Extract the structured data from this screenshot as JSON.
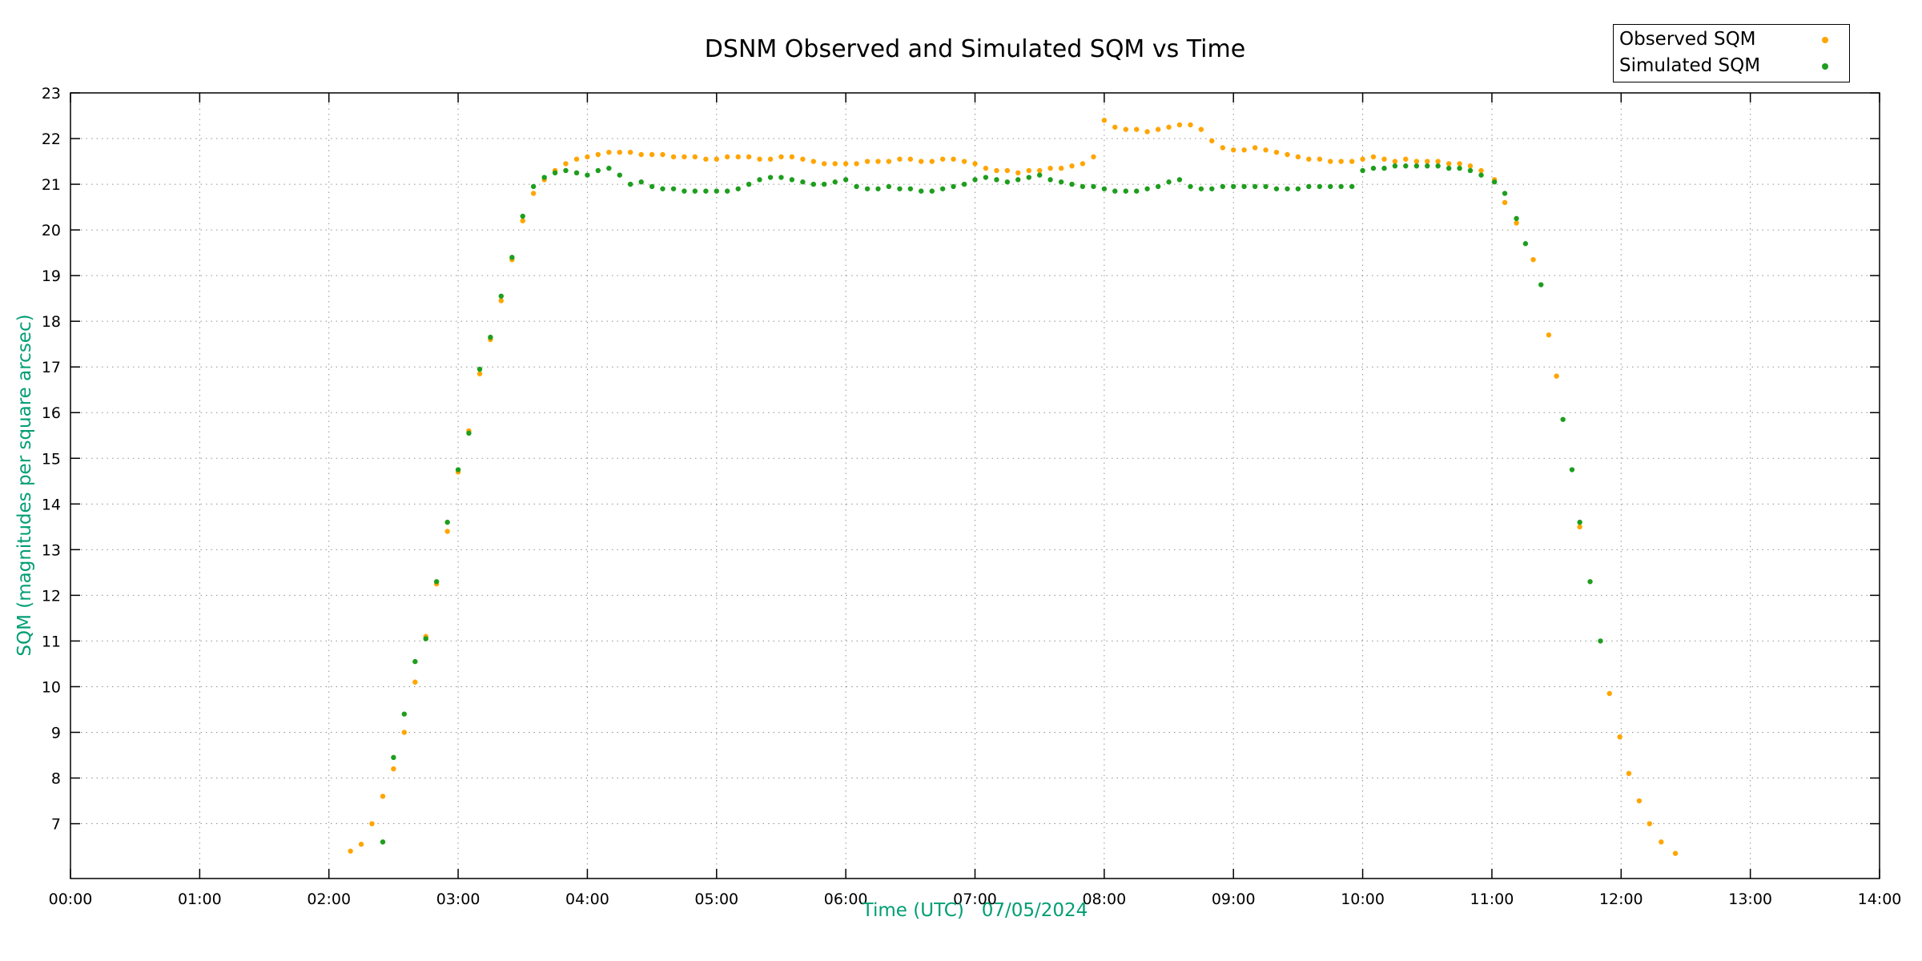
{
  "page": {
    "background": "#ffffff"
  },
  "chart_data": {
    "type": "scatter",
    "title": "DSNM Observed and Simulated SQM vs Time",
    "xlabel": "Time (UTC)   07/05/2024",
    "ylabel": "SQM (magnitudes per square arcsec)",
    "axis_label_color": "#009e73",
    "grid": "dotted",
    "legend_position": "top-right",
    "xlim_hours": [
      0,
      14
    ],
    "ylim": [
      5.8,
      23
    ],
    "x_ticks": [
      "00:00",
      "01:00",
      "02:00",
      "03:00",
      "04:00",
      "05:00",
      "06:00",
      "07:00",
      "08:00",
      "09:00",
      "10:00",
      "11:00",
      "12:00",
      "13:00",
      "14:00"
    ],
    "y_ticks": [
      7,
      8,
      9,
      10,
      11,
      12,
      13,
      14,
      15,
      16,
      17,
      18,
      19,
      20,
      21,
      22,
      23
    ],
    "series": [
      {
        "name": "Observed SQM",
        "color": "#FFA500",
        "marker": "dot",
        "points": [
          [
            2.167,
            6.4
          ],
          [
            2.25,
            6.55
          ],
          [
            2.333,
            7.0
          ],
          [
            2.417,
            7.6
          ],
          [
            2.5,
            8.2
          ],
          [
            2.583,
            9.0
          ],
          [
            2.667,
            10.1
          ],
          [
            2.75,
            11.1
          ],
          [
            2.833,
            12.25
          ],
          [
            2.917,
            13.4
          ],
          [
            3.0,
            14.7
          ],
          [
            3.083,
            15.6
          ],
          [
            3.167,
            16.85
          ],
          [
            3.25,
            17.6
          ],
          [
            3.333,
            18.45
          ],
          [
            3.417,
            19.35
          ],
          [
            3.5,
            20.2
          ],
          [
            3.583,
            20.8
          ],
          [
            3.667,
            21.1
          ],
          [
            3.75,
            21.3
          ],
          [
            3.833,
            21.45
          ],
          [
            3.917,
            21.55
          ],
          [
            4.0,
            21.6
          ],
          [
            4.083,
            21.65
          ],
          [
            4.167,
            21.7
          ],
          [
            4.25,
            21.7
          ],
          [
            4.333,
            21.7
          ],
          [
            4.417,
            21.65
          ],
          [
            4.5,
            21.65
          ],
          [
            4.583,
            21.65
          ],
          [
            4.667,
            21.6
          ],
          [
            4.75,
            21.6
          ],
          [
            4.833,
            21.6
          ],
          [
            4.917,
            21.55
          ],
          [
            5.0,
            21.55
          ],
          [
            5.083,
            21.6
          ],
          [
            5.167,
            21.6
          ],
          [
            5.25,
            21.6
          ],
          [
            5.333,
            21.55
          ],
          [
            5.417,
            21.55
          ],
          [
            5.5,
            21.6
          ],
          [
            5.583,
            21.6
          ],
          [
            5.667,
            21.55
          ],
          [
            5.75,
            21.5
          ],
          [
            5.833,
            21.45
          ],
          [
            5.917,
            21.45
          ],
          [
            6.0,
            21.45
          ],
          [
            6.083,
            21.45
          ],
          [
            6.167,
            21.5
          ],
          [
            6.25,
            21.5
          ],
          [
            6.333,
            21.5
          ],
          [
            6.417,
            21.55
          ],
          [
            6.5,
            21.55
          ],
          [
            6.583,
            21.5
          ],
          [
            6.667,
            21.5
          ],
          [
            6.75,
            21.55
          ],
          [
            6.833,
            21.55
          ],
          [
            6.917,
            21.5
          ],
          [
            7.0,
            21.45
          ],
          [
            7.083,
            21.35
          ],
          [
            7.167,
            21.3
          ],
          [
            7.25,
            21.3
          ],
          [
            7.333,
            21.25
          ],
          [
            7.417,
            21.3
          ],
          [
            7.5,
            21.3
          ],
          [
            7.583,
            21.35
          ],
          [
            7.667,
            21.35
          ],
          [
            7.75,
            21.4
          ],
          [
            7.833,
            21.45
          ],
          [
            7.917,
            21.6
          ],
          [
            8.0,
            22.4
          ],
          [
            8.083,
            22.25
          ],
          [
            8.167,
            22.2
          ],
          [
            8.25,
            22.2
          ],
          [
            8.333,
            22.15
          ],
          [
            8.417,
            22.2
          ],
          [
            8.5,
            22.25
          ],
          [
            8.583,
            22.3
          ],
          [
            8.667,
            22.3
          ],
          [
            8.75,
            22.2
          ],
          [
            8.833,
            21.95
          ],
          [
            8.917,
            21.8
          ],
          [
            9.0,
            21.75
          ],
          [
            9.083,
            21.75
          ],
          [
            9.167,
            21.8
          ],
          [
            9.25,
            21.75
          ],
          [
            9.333,
            21.7
          ],
          [
            9.417,
            21.65
          ],
          [
            9.5,
            21.6
          ],
          [
            9.583,
            21.55
          ],
          [
            9.667,
            21.55
          ],
          [
            9.75,
            21.5
          ],
          [
            9.833,
            21.5
          ],
          [
            9.917,
            21.5
          ],
          [
            10.0,
            21.55
          ],
          [
            10.083,
            21.6
          ],
          [
            10.167,
            21.55
          ],
          [
            10.25,
            21.5
          ],
          [
            10.333,
            21.55
          ],
          [
            10.417,
            21.5
          ],
          [
            10.5,
            21.5
          ],
          [
            10.583,
            21.5
          ],
          [
            10.667,
            21.45
          ],
          [
            10.75,
            21.45
          ],
          [
            10.833,
            21.4
          ],
          [
            10.917,
            21.3
          ],
          [
            11.02,
            21.1
          ],
          [
            11.1,
            20.6
          ],
          [
            11.19,
            20.15
          ],
          [
            11.32,
            19.35
          ],
          [
            11.44,
            17.7
          ],
          [
            11.5,
            16.8
          ],
          [
            11.68,
            13.5
          ],
          [
            11.91,
            9.85
          ],
          [
            11.99,
            8.9
          ],
          [
            12.06,
            8.1
          ],
          [
            12.14,
            7.5
          ],
          [
            12.22,
            7.0
          ],
          [
            12.31,
            6.6
          ],
          [
            12.42,
            6.35
          ]
        ]
      },
      {
        "name": "Simulated SQM",
        "color": "#1E9E1E",
        "marker": "dot",
        "points": [
          [
            2.417,
            6.6
          ],
          [
            2.5,
            8.45
          ],
          [
            2.583,
            9.4
          ],
          [
            2.667,
            10.55
          ],
          [
            2.75,
            11.05
          ],
          [
            2.833,
            12.3
          ],
          [
            2.917,
            13.6
          ],
          [
            3.0,
            14.75
          ],
          [
            3.083,
            15.55
          ],
          [
            3.167,
            16.95
          ],
          [
            3.25,
            17.65
          ],
          [
            3.333,
            18.55
          ],
          [
            3.417,
            19.4
          ],
          [
            3.5,
            20.3
          ],
          [
            3.583,
            20.95
          ],
          [
            3.667,
            21.15
          ],
          [
            3.75,
            21.25
          ],
          [
            3.833,
            21.3
          ],
          [
            3.917,
            21.25
          ],
          [
            4.0,
            21.2
          ],
          [
            4.083,
            21.3
          ],
          [
            4.167,
            21.35
          ],
          [
            4.25,
            21.2
          ],
          [
            4.333,
            21.0
          ],
          [
            4.417,
            21.05
          ],
          [
            4.5,
            20.95
          ],
          [
            4.583,
            20.9
          ],
          [
            4.667,
            20.9
          ],
          [
            4.75,
            20.85
          ],
          [
            4.833,
            20.85
          ],
          [
            4.917,
            20.85
          ],
          [
            5.0,
            20.85
          ],
          [
            5.083,
            20.85
          ],
          [
            5.167,
            20.9
          ],
          [
            5.25,
            21.0
          ],
          [
            5.333,
            21.1
          ],
          [
            5.417,
            21.15
          ],
          [
            5.5,
            21.15
          ],
          [
            5.583,
            21.1
          ],
          [
            5.667,
            21.05
          ],
          [
            5.75,
            21.0
          ],
          [
            5.833,
            21.0
          ],
          [
            5.917,
            21.05
          ],
          [
            6.0,
            21.1
          ],
          [
            6.083,
            20.95
          ],
          [
            6.167,
            20.9
          ],
          [
            6.25,
            20.9
          ],
          [
            6.333,
            20.95
          ],
          [
            6.417,
            20.9
          ],
          [
            6.5,
            20.9
          ],
          [
            6.583,
            20.85
          ],
          [
            6.667,
            20.85
          ],
          [
            6.75,
            20.9
          ],
          [
            6.833,
            20.95
          ],
          [
            6.917,
            21.0
          ],
          [
            7.0,
            21.1
          ],
          [
            7.083,
            21.15
          ],
          [
            7.167,
            21.1
          ],
          [
            7.25,
            21.05
          ],
          [
            7.333,
            21.1
          ],
          [
            7.417,
            21.15
          ],
          [
            7.5,
            21.2
          ],
          [
            7.583,
            21.1
          ],
          [
            7.667,
            21.05
          ],
          [
            7.75,
            21.0
          ],
          [
            7.833,
            20.95
          ],
          [
            7.917,
            20.95
          ],
          [
            8.0,
            20.9
          ],
          [
            8.083,
            20.85
          ],
          [
            8.167,
            20.85
          ],
          [
            8.25,
            20.85
          ],
          [
            8.333,
            20.9
          ],
          [
            8.417,
            20.95
          ],
          [
            8.5,
            21.05
          ],
          [
            8.583,
            21.1
          ],
          [
            8.667,
            20.95
          ],
          [
            8.75,
            20.9
          ],
          [
            8.833,
            20.9
          ],
          [
            8.917,
            20.95
          ],
          [
            9.0,
            20.95
          ],
          [
            9.083,
            20.95
          ],
          [
            9.167,
            20.95
          ],
          [
            9.25,
            20.95
          ],
          [
            9.333,
            20.9
          ],
          [
            9.417,
            20.9
          ],
          [
            9.5,
            20.9
          ],
          [
            9.583,
            20.95
          ],
          [
            9.667,
            20.95
          ],
          [
            9.75,
            20.95
          ],
          [
            9.833,
            20.95
          ],
          [
            9.917,
            20.95
          ],
          [
            10.0,
            21.3
          ],
          [
            10.083,
            21.35
          ],
          [
            10.167,
            21.35
          ],
          [
            10.25,
            21.4
          ],
          [
            10.333,
            21.4
          ],
          [
            10.417,
            21.4
          ],
          [
            10.5,
            21.4
          ],
          [
            10.583,
            21.4
          ],
          [
            10.667,
            21.35
          ],
          [
            10.75,
            21.35
          ],
          [
            10.833,
            21.3
          ],
          [
            10.917,
            21.2
          ],
          [
            11.02,
            21.05
          ],
          [
            11.1,
            20.8
          ],
          [
            11.19,
            20.25
          ],
          [
            11.26,
            19.7
          ],
          [
            11.38,
            18.8
          ],
          [
            11.55,
            15.85
          ],
          [
            11.62,
            14.75
          ],
          [
            11.68,
            13.6
          ],
          [
            11.76,
            12.3
          ],
          [
            11.84,
            11.0
          ]
        ]
      }
    ]
  }
}
